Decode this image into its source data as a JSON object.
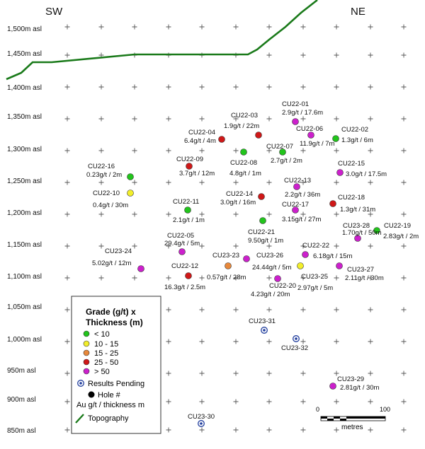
{
  "direction_left": "SW",
  "direction_right": "NE",
  "y_axis_labels": [
    "1,500m asl",
    "1,450m asl",
    "1,400m asl",
    "1,350m asl",
    "1,300m asl",
    "1,250m asl",
    "1,200m asl",
    "1,150m asl",
    "1,100m asl",
    "1,050m asl",
    "1,000m asl",
    "950m asl",
    "900m asl",
    "850m asl"
  ],
  "colors": {
    "lt10": "#22c41c",
    "10to15": "#f2ee2a",
    "15to25": "#e8883a",
    "25to50": "#cf1818",
    "gt50": "#cc20cc",
    "topography": "#1a7a1a",
    "pending": "#1f3c9c"
  },
  "holes": [
    {
      "id": "CU22-01",
      "result": "2.9g/t / 17.6m",
      "grade_class": "gt50"
    },
    {
      "id": "CU22-02",
      "result": "1.3g/t / 6m",
      "grade_class": "lt10"
    },
    {
      "id": "CU22-03",
      "result": "1.9g/t / 22m",
      "grade_class": "25to50"
    },
    {
      "id": "CU22-04",
      "result": "6.4g/t / 4m",
      "grade_class": "25to50"
    },
    {
      "id": "CU22-05",
      "result": "29.4g/t / 5m",
      "grade_class": "gt50"
    },
    {
      "id": "CU22-06",
      "result": "11.9g/t / 7m",
      "grade_class": "gt50"
    },
    {
      "id": "CU22-07",
      "result": "2.7g/t / 2m",
      "grade_class": "lt10"
    },
    {
      "id": "CU22-08",
      "result": "4.8g/t / 1m",
      "grade_class": "lt10"
    },
    {
      "id": "CU22-09",
      "result": "3.7g/t / 12m",
      "grade_class": "25to50"
    },
    {
      "id": "CU22-10",
      "result": "0.4g/t / 30m",
      "grade_class": "10to15"
    },
    {
      "id": "CU22-11",
      "result": "2.1g/t / 1m",
      "grade_class": "lt10"
    },
    {
      "id": "CU22-12",
      "result": "16.3g/t / 2.5m",
      "grade_class": "25to50"
    },
    {
      "id": "CU22-13",
      "result": "2.2g/t / 36m",
      "grade_class": "gt50"
    },
    {
      "id": "CU22-14",
      "result": "3.0g/t / 16m",
      "grade_class": "25to50"
    },
    {
      "id": "CU22-15",
      "result": "3.0g/t / 17.5m",
      "grade_class": "gt50"
    },
    {
      "id": "CU22-16",
      "result": "0.23g/t / 2m",
      "grade_class": "lt10"
    },
    {
      "id": "CU22-17",
      "result": "3.15g/t / 27m",
      "grade_class": "gt50"
    },
    {
      "id": "CU22-18",
      "result": "1.3g/t / 31m",
      "grade_class": "25to50"
    },
    {
      "id": "CU22-19",
      "result": "2.83g/t / 2m",
      "grade_class": "lt10"
    },
    {
      "id": "CU22-20",
      "result": "4.23g/t / 20m",
      "grade_class": "gt50"
    },
    {
      "id": "CU22-21",
      "result": "9.50g/t / 1m",
      "grade_class": "lt10"
    },
    {
      "id": "CU22-22",
      "result": "6.18g/t / 15m",
      "grade_class": "gt50"
    },
    {
      "id": "CU23-23",
      "result": "0.57g/t / 28m",
      "grade_class": "15to25"
    },
    {
      "id": "CU23-24",
      "result": "5.02g/t / 12m",
      "grade_class": "gt50"
    },
    {
      "id": "CU23-25",
      "result": "2.97g/t / 5m",
      "grade_class": "10to15"
    },
    {
      "id": "CU23-26",
      "result": "24.44g/t / 5m",
      "grade_class": "gt50"
    },
    {
      "id": "CU23-27",
      "result": "2.11g/t / 30m",
      "grade_class": "gt50"
    },
    {
      "id": "CU23-28",
      "result": "1.70g/t / 50m",
      "grade_class": "gt50"
    },
    {
      "id": "CU23-29",
      "result": "2.81g/t / 30m",
      "grade_class": "gt50"
    }
  ],
  "pending_holes": [
    "CU23-30",
    "CU23-31",
    "CU23-32"
  ],
  "legend": {
    "title_line1": "Grade (g/t) x",
    "title_line2": "Thickness (m)",
    "items": [
      {
        "label": "< 10",
        "class": "lt10"
      },
      {
        "label": "10 - 15",
        "class": "10to15"
      },
      {
        "label": "15 - 25",
        "class": "15to25"
      },
      {
        "label": "25 - 50",
        "class": "25to50"
      },
      {
        "label": "> 50",
        "class": "gt50"
      }
    ],
    "pending_label": "Results Pending",
    "hole_label": "Hole #",
    "hole_sublabel": "Au g/t / thickness m",
    "topography_label": "Topography"
  },
  "scale_bar": {
    "start_label": "0",
    "end_label": "100",
    "unit": "metres"
  }
}
